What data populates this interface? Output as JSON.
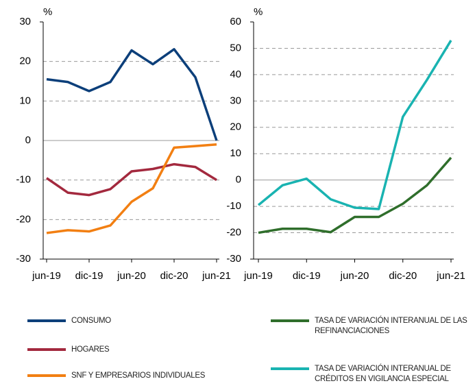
{
  "chart_data": [
    {
      "type": "line",
      "y_unit": "%",
      "categories": [
        "jun-19",
        null,
        "dic-19",
        null,
        "jun-20",
        null,
        "dic-20",
        null,
        "jun-21"
      ],
      "ylim": [
        -30,
        30
      ],
      "yticks": [
        -30,
        -20,
        -10,
        0,
        10,
        20,
        30
      ],
      "grid": true,
      "series": [
        {
          "name": "CONSUMO",
          "color": "#0c3f7a",
          "values": [
            15.5,
            14.8,
            12.5,
            14.8,
            22.8,
            19.3,
            23.1,
            16,
            0
          ]
        },
        {
          "name": "HOGARES",
          "color": "#a3293e",
          "values": [
            -9.5,
            -13.2,
            -13.8,
            -12.3,
            -7.8,
            -7.2,
            -6,
            -6.7,
            -10
          ]
        },
        {
          "name": "SNF Y EMPRESARIOS INDIVIDUALES",
          "color": "#f27f12",
          "values": [
            -23.4,
            -22.7,
            -23,
            -21.5,
            -15.5,
            -12.1,
            -1.8,
            -1.4,
            -1
          ]
        }
      ]
    },
    {
      "type": "line",
      "y_unit": "%",
      "categories": [
        "jun-19",
        null,
        "dic-19",
        null,
        "jun-20",
        null,
        "dic-20",
        null,
        "jun-21"
      ],
      "ylim": [
        -30,
        60
      ],
      "yticks": [
        -30,
        -20,
        -10,
        0,
        10,
        20,
        30,
        40,
        50,
        60
      ],
      "grid": true,
      "series": [
        {
          "name": "TASA DE VARIACIÓN INTERANUAL DE LAS REFINANCIACIONES",
          "color": "#2f6e2b",
          "values": [
            -20,
            -18.5,
            -18.5,
            -19.8,
            -14,
            -14,
            -9,
            -2,
            8.5
          ]
        },
        {
          "name": "TASA DE VARIACIÓN INTERANUAL DE CRÉDITOS EN VIGILANCIA ESPECIAL",
          "color": "#19b3b1",
          "values": [
            -9.5,
            -2,
            0.5,
            -7.3,
            -10.5,
            -11,
            24,
            38,
            53
          ]
        }
      ]
    }
  ]
}
